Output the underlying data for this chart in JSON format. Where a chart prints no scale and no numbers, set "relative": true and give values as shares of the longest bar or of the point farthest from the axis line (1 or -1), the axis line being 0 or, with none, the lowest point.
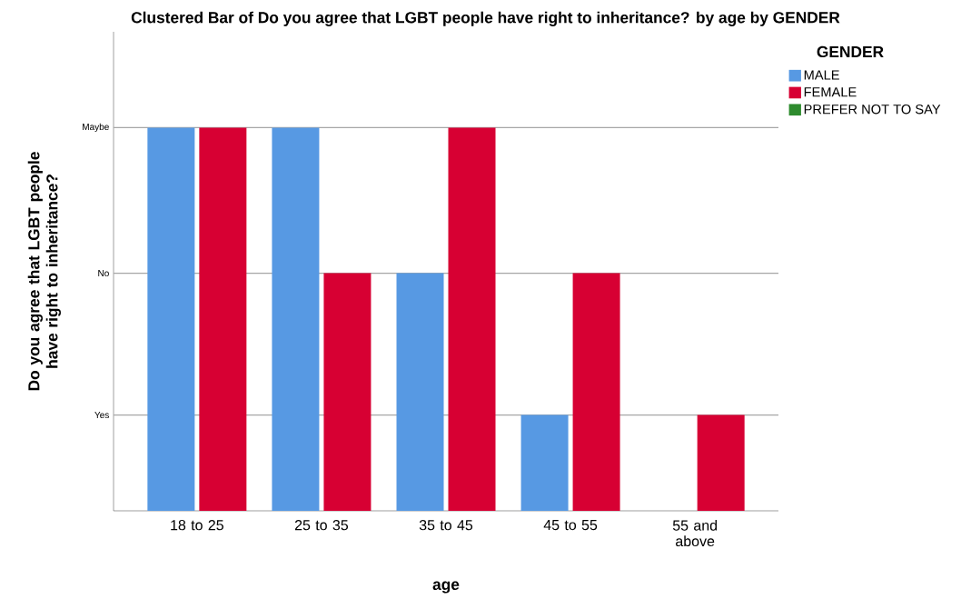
{
  "chart_data": {
    "type": "bar",
    "title": "Clustered Bar of Do you agree that LGBT people have right to inheritance? by age by GENDER",
    "xlabel": "age",
    "ylabel": "Do you agree that LGBT people have right to inheritance?",
    "legend_title": "GENDER",
    "categories": [
      "18 to 25",
      "25 to 35",
      "35 to 45",
      "45 to 55",
      "55 and above"
    ],
    "series": [
      {
        "name": "MALE",
        "color": "#5799e3",
        "values": [
          1,
          1,
          0.62,
          0.25,
          null
        ]
      },
      {
        "name": "FEMALE",
        "color": "#d70033",
        "values": [
          1,
          0.62,
          1,
          0.62,
          0.25
        ]
      },
      {
        "name": "PREFER NOT TO SAY",
        "color": "#2e8b2e",
        "values": [
          null,
          null,
          null,
          null,
          null
        ]
      }
    ],
    "relative": true,
    "ref_lines": [
      {
        "axis": "y",
        "value": 0.25,
        "label": "Yes"
      },
      {
        "axis": "y",
        "value": 0.62,
        "label": "No"
      },
      {
        "axis": "y",
        "value": 1,
        "label": "Maybe"
      }
    ],
    "legend": "right"
  }
}
